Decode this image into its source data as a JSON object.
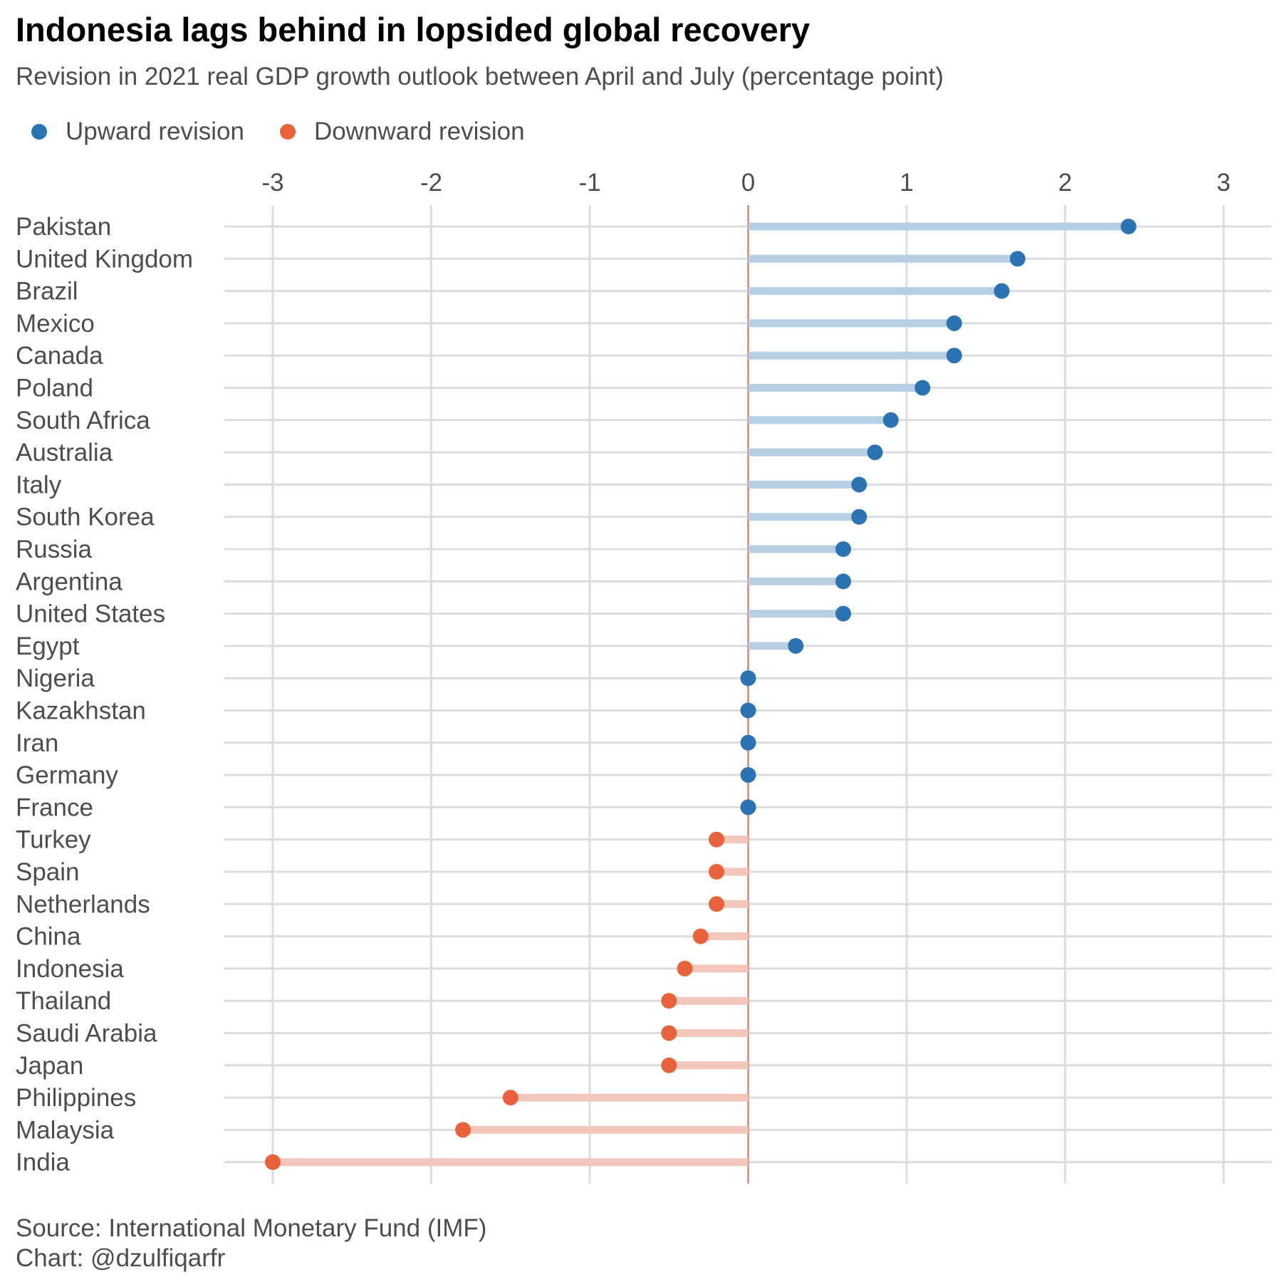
{
  "title": "Indonesia lags behind in lopsided global recovery",
  "subtitle": "Revision in 2021 real GDP growth outlook between April and July (percentage point)",
  "legend": {
    "up_label": "Upward revision",
    "down_label": "Downward revision"
  },
  "caption": {
    "source": "Source: International Monetary Fund (IMF)",
    "credit": "Chart: @dzulfiqarfr"
  },
  "colors": {
    "up": "#2c73b4",
    "down": "#e8623b",
    "up_line": "#b7cfe2",
    "down_line": "#f2c7ba",
    "zero_line": "#e8857a",
    "grid": "#dcdcdc"
  },
  "chart_data": {
    "type": "lollipop",
    "orientation": "horizontal",
    "xlim": [
      -3,
      3
    ],
    "xticks": [
      -3,
      -2,
      -1,
      0,
      1,
      2,
      3
    ],
    "grid": true,
    "legend_position": "top-left",
    "series": [
      {
        "name": "Upward revision",
        "categories": [
          "Pakistan",
          "United Kingdom",
          "Brazil",
          "Mexico",
          "Canada",
          "Poland",
          "South Africa",
          "Australia",
          "Italy",
          "South Korea",
          "Russia",
          "Argentina",
          "United States",
          "Egypt",
          "Nigeria",
          "Kazakhstan",
          "Iran",
          "Germany",
          "France"
        ]
      },
      {
        "name": "Downward revision",
        "categories": [
          "Turkey",
          "Spain",
          "Netherlands",
          "China",
          "Indonesia",
          "Thailand",
          "Saudi Arabia",
          "Japan",
          "Philippines",
          "Malaysia",
          "India"
        ]
      }
    ],
    "categories": [
      "Pakistan",
      "United Kingdom",
      "Brazil",
      "Mexico",
      "Canada",
      "Poland",
      "South Africa",
      "Australia",
      "Italy",
      "South Korea",
      "Russia",
      "Argentina",
      "United States",
      "Egypt",
      "Nigeria",
      "Kazakhstan",
      "Iran",
      "Germany",
      "France",
      "Turkey",
      "Spain",
      "Netherlands",
      "China",
      "Indonesia",
      "Thailand",
      "Saudi Arabia",
      "Japan",
      "Philippines",
      "Malaysia",
      "India"
    ],
    "values": [
      2.4,
      1.7,
      1.6,
      1.3,
      1.3,
      1.1,
      0.9,
      0.8,
      0.7,
      0.7,
      0.6,
      0.6,
      0.6,
      0.3,
      0.0,
      0.0,
      0.0,
      0.0,
      0.0,
      -0.2,
      -0.2,
      -0.2,
      -0.3,
      -0.4,
      -0.5,
      -0.5,
      -0.5,
      -1.5,
      -1.8,
      -3.0
    ]
  }
}
